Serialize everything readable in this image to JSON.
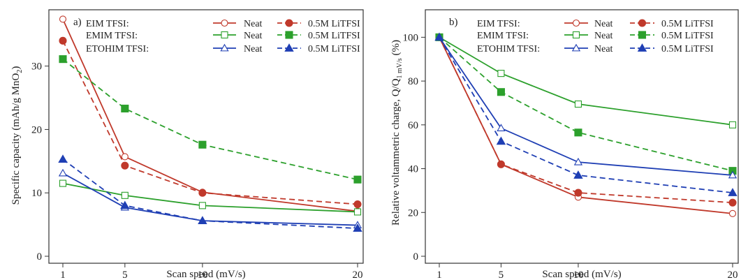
{
  "chart_data": [
    {
      "panel_label": "a)",
      "type": "line",
      "xlabel": "Scan speed (mV/s)",
      "ylabel_main": "Specific capacity (mAh/g MnO",
      "ylabel_sub": "2",
      "ylabel_tail": ")",
      "x": [
        1,
        5,
        10,
        20
      ],
      "x_ticks": [
        1,
        5,
        10,
        20
      ],
      "y_ticks": [
        0,
        10,
        20,
        30
      ],
      "xlim": [
        1,
        20
      ],
      "ylim": [
        0,
        38
      ],
      "grid": false,
      "legend_placement": "top-right",
      "series": [
        {
          "group": "EIM TFSI:",
          "name": "Neat",
          "color": "#c0392b",
          "marker": "circle",
          "filled": false,
          "dashed": false,
          "values": [
            37.4,
            15.7,
            10.1,
            7.1
          ]
        },
        {
          "group": "EIM TFSI:",
          "name": "0.5M LiTFSI",
          "color": "#c0392b",
          "marker": "circle",
          "filled": true,
          "dashed": true,
          "values": [
            34.0,
            14.3,
            10.0,
            8.2
          ]
        },
        {
          "group": "EMIM TFSI:",
          "name": "Neat",
          "color": "#2ca02c",
          "marker": "square",
          "filled": false,
          "dashed": false,
          "values": [
            11.5,
            9.6,
            8.0,
            7.0
          ]
        },
        {
          "group": "EMIM TFSI:",
          "name": "0.5M LiTFSI",
          "color": "#2ca02c",
          "marker": "square",
          "filled": true,
          "dashed": true,
          "values": [
            31.1,
            23.3,
            17.6,
            12.1
          ]
        },
        {
          "group": "ETOHIM TFSI:",
          "name": "Neat",
          "color": "#1f3fb4",
          "marker": "triangle",
          "filled": false,
          "dashed": false,
          "values": [
            13.1,
            7.7,
            5.6,
            4.9
          ]
        },
        {
          "group": "ETOHIM TFSI:",
          "name": "0.5M LiTFSI",
          "color": "#1f3fb4",
          "marker": "triangle",
          "filled": true,
          "dashed": true,
          "values": [
            15.3,
            8.0,
            5.6,
            4.4
          ]
        }
      ]
    },
    {
      "panel_label": "b)",
      "type": "line",
      "xlabel": "Scan speed (mV/s)",
      "ylabel_main": "Relative voltammetric charge, Q/Q",
      "ylabel_sub": "1 mV/s",
      "ylabel_tail": " (%)",
      "x": [
        1,
        5,
        10,
        20
      ],
      "x_ticks": [
        1,
        5,
        10,
        20
      ],
      "y_ticks": [
        0,
        20,
        40,
        60,
        80,
        100
      ],
      "xlim": [
        1,
        20
      ],
      "ylim": [
        0,
        110
      ],
      "grid": false,
      "legend_placement": "top-right",
      "series": [
        {
          "group": "EIM TFSI:",
          "name": "Neat",
          "color": "#c0392b",
          "marker": "circle",
          "filled": false,
          "dashed": false,
          "values": [
            100,
            42,
            27,
            19.5
          ]
        },
        {
          "group": "EIM TFSI:",
          "name": "0.5M LiTFSI",
          "color": "#c0392b",
          "marker": "circle",
          "filled": true,
          "dashed": true,
          "values": [
            100,
            42,
            29,
            24.5
          ]
        },
        {
          "group": "EMIM TFSI:",
          "name": "Neat",
          "color": "#2ca02c",
          "marker": "square",
          "filled": false,
          "dashed": false,
          "values": [
            100,
            83.5,
            69.5,
            60
          ]
        },
        {
          "group": "EMIM TFSI:",
          "name": "0.5M LiTFSI",
          "color": "#2ca02c",
          "marker": "square",
          "filled": true,
          "dashed": true,
          "values": [
            100,
            75,
            56.5,
            39
          ]
        },
        {
          "group": "ETOHIM TFSI:",
          "name": "Neat",
          "color": "#1f3fb4",
          "marker": "triangle",
          "filled": false,
          "dashed": false,
          "values": [
            100,
            58.5,
            43,
            37
          ]
        },
        {
          "group": "ETOHIM TFSI:",
          "name": "0.5M LiTFSI",
          "color": "#1f3fb4",
          "marker": "triangle",
          "filled": true,
          "dashed": true,
          "values": [
            100,
            52.5,
            37,
            29
          ]
        }
      ]
    }
  ]
}
